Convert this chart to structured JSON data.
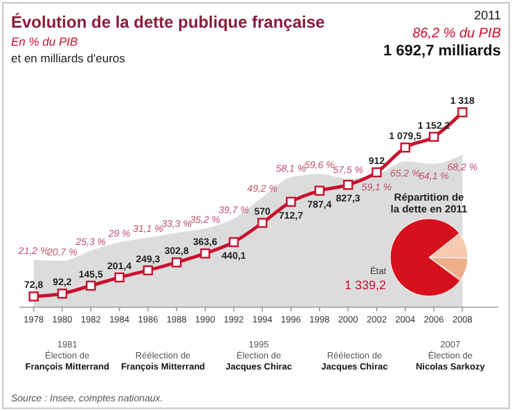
{
  "chart_data": [
    {
      "type": "line",
      "title": "Évolution de la dette publique française",
      "y2label": "En % du PIB",
      "ylabel": "et en milliards d'euros",
      "x": [
        1978,
        1980,
        1982,
        1984,
        1986,
        1988,
        1990,
        1992,
        1994,
        1996,
        1998,
        2000,
        2002,
        2004,
        2006,
        2008
      ],
      "xlim": [
        1977,
        2010.5
      ],
      "xticks": [
        1978,
        1980,
        1982,
        1984,
        1986,
        1988,
        1990,
        1992,
        1994,
        1996,
        1998,
        2000,
        2002,
        2004,
        2006,
        2008
      ],
      "tick_labels": "x",
      "series": [
        {
          "type": "area",
          "axis": "y2",
          "color": "#dcdcdc",
          "values": [
            21.2,
            20.7,
            25.3,
            29,
            31.1,
            33.3,
            35.2,
            39.7,
            49.2,
            58.1,
            59.6,
            57.5,
            59.1,
            65.2,
            64.1,
            68.2
          ],
          "value_labels": [
            "21,2 %",
            "20,7 %",
            "25,3 %",
            "29 %",
            "31,1 %",
            "33,3 %",
            "35,2 %",
            "39,7 %",
            "49,2 %",
            "58,1 %",
            "59,6 %",
            "57,5 %",
            "59,1 %",
            "65,2 %",
            "64,1 %",
            "68,2 %"
          ]
        },
        {
          "type": "line",
          "marker": "square",
          "color": "#c8102e",
          "values": [
            72.8,
            92.2,
            145.5,
            201.4,
            249.3,
            302.8,
            363.6,
            440.1,
            570,
            712.7,
            787.4,
            827.3,
            912,
            1079.5,
            1152.2,
            1318
          ],
          "value_labels": [
            "72,8",
            "92,2",
            "145,5",
            "201,4",
            "249,3",
            "302,8",
            "363,6",
            "440,1",
            "570",
            "712,7",
            "787,4",
            "827,3",
            "912",
            "1 079,5",
            "1 152,2",
            "1 318"
          ]
        }
      ],
      "annotations": [
        "2011",
        "86,2 % du PIB",
        "1 692,7 milliards",
        "1981\nÉlection de\nFrançois Mitterrand",
        "Réélection de\nFrançois Mitterrand",
        "1995\nÉlection de\nJacques Chirac",
        "Réélection de\nJacques Chirac",
        "2007\nÉlection de\nNicolas Sarkozy",
        "Source : Insee, comptes nationaux."
      ]
    },
    {
      "type": "pie",
      "title": "Répartition de la dette en 2011",
      "categories": [
        null,
        null,
        null,
        "État"
      ],
      "values": [
        186.1,
        156.5,
        10.9,
        1339.2
      ],
      "colors": [
        "#f6c9b0",
        "#eeae8a",
        "#de8558",
        "#d7101e"
      ],
      "value_labels": [
        null,
        null,
        null,
        "1 339,2"
      ]
    }
  ]
}
